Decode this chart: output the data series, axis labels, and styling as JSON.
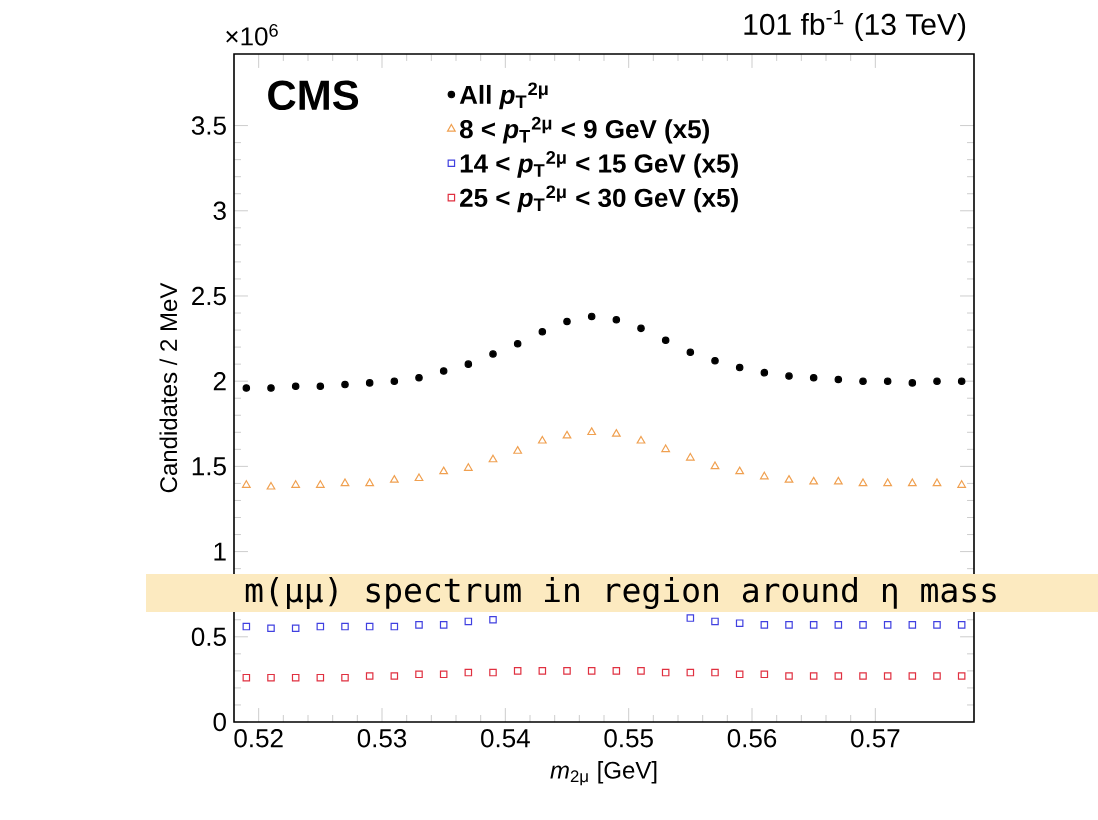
{
  "chart_data": {
    "type": "scatter",
    "title": "101 fb$^{-1}$ (13 TeV)",
    "xlabel": "*m*$_{2μ}$ [GeV]",
    "ylabel": "Candidates / 2 MeV",
    "annotations": [
      "×10$^{6}$",
      "**CMS**",
      "m(μμ) spectrum in region around η mass"
    ],
    "x": [
      0.519,
      0.521,
      0.523,
      0.525,
      0.527,
      0.529,
      0.531,
      0.533,
      0.535,
      0.537,
      0.539,
      0.541,
      0.543,
      0.545,
      0.547,
      0.549,
      0.551,
      0.553,
      0.555,
      0.557,
      0.559,
      0.561,
      0.563,
      0.565,
      0.567,
      0.569,
      0.571,
      0.573,
      0.575,
      0.577
    ],
    "series": [
      {
        "name": "All *p*$_{T}$$^{2μ}$",
        "color": "#000000",
        "marker": "circle",
        "values": [
          1.96,
          1.96,
          1.97,
          1.97,
          1.98,
          1.99,
          2.0,
          2.02,
          2.06,
          2.1,
          2.16,
          2.22,
          2.29,
          2.35,
          2.38,
          2.36,
          2.31,
          2.24,
          2.17,
          2.12,
          2.08,
          2.05,
          2.03,
          2.02,
          2.01,
          2.0,
          2.0,
          1.99,
          2.0,
          2.0
        ]
      },
      {
        "name": "8 < *p*$_{T}$$^{2μ}$ < 9 GeV (x5)",
        "color": "#f0a050",
        "marker": "triangle",
        "values": [
          1.39,
          1.38,
          1.39,
          1.39,
          1.4,
          1.4,
          1.42,
          1.43,
          1.47,
          1.49,
          1.54,
          1.59,
          1.65,
          1.68,
          1.7,
          1.69,
          1.65,
          1.6,
          1.55,
          1.5,
          1.47,
          1.44,
          1.42,
          1.41,
          1.41,
          1.4,
          1.4,
          1.4,
          1.4,
          1.39
        ]
      },
      {
        "name": "14 < *p*$_{T}$$^{2μ}$ < 15 GeV (x5)",
        "color": "#4040e0",
        "marker": "square",
        "values": [
          0.56,
          0.55,
          0.55,
          0.56,
          0.56,
          0.56,
          0.56,
          0.57,
          0.57,
          0.59,
          0.6,
          null,
          null,
          null,
          null,
          null,
          null,
          null,
          0.61,
          0.59,
          0.58,
          0.57,
          0.57,
          0.57,
          0.57,
          0.57,
          0.57,
          0.57,
          0.57,
          0.57
        ]
      },
      {
        "name": "25 < *p*$_{T}$$^{2μ}$ < 30 GeV (x5)",
        "color": "#e03040",
        "marker": "square",
        "values": [
          0.26,
          0.26,
          0.26,
          0.26,
          0.26,
          0.27,
          0.27,
          0.28,
          0.28,
          0.29,
          0.29,
          0.3,
          0.3,
          0.3,
          0.3,
          0.3,
          0.3,
          0.29,
          0.29,
          0.29,
          0.28,
          0.28,
          0.27,
          0.27,
          0.27,
          0.27,
          0.27,
          0.27,
          0.27,
          0.27
        ]
      }
    ],
    "xlim": [
      0.518,
      0.578
    ],
    "ylim": [
      0,
      3.92
    ],
    "xticks": [
      0.52,
      0.53,
      0.54,
      0.55,
      0.56,
      0.57
    ],
    "yticks": [
      0,
      0.5,
      1,
      1.5,
      2,
      2.5,
      3,
      3.5
    ],
    "legend": "top"
  }
}
